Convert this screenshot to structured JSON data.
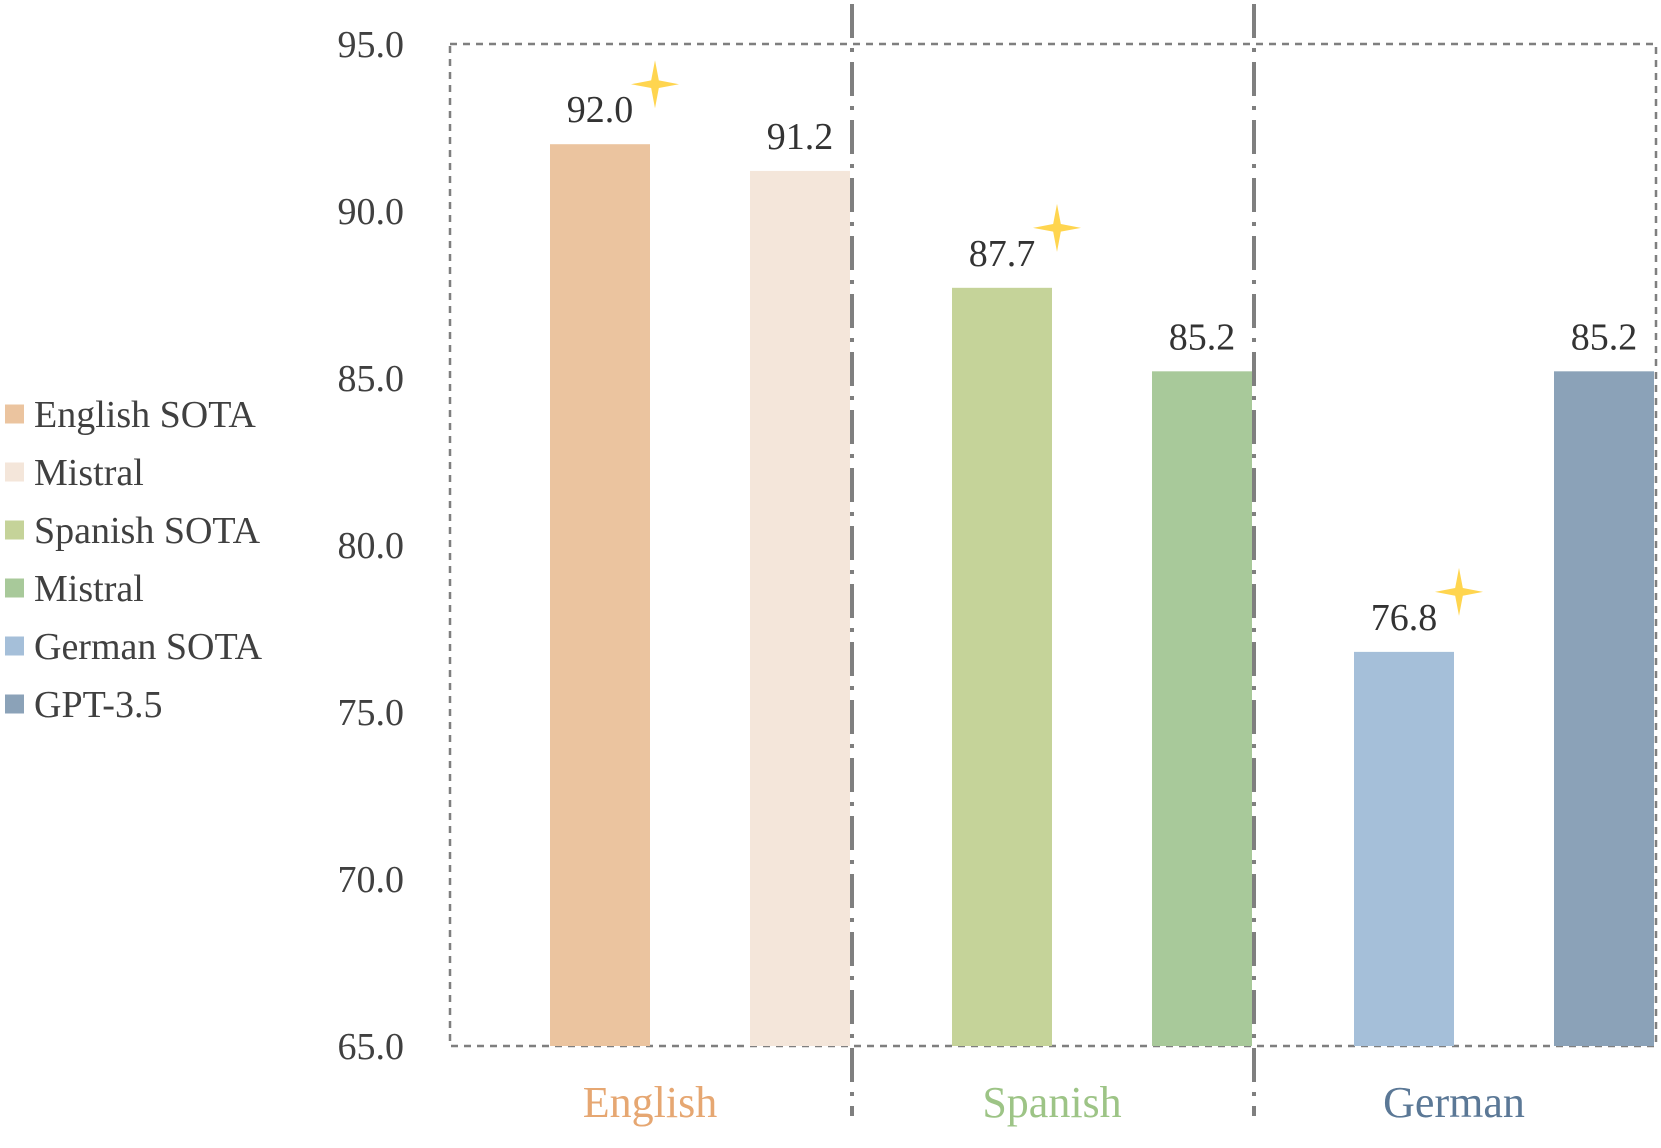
{
  "chart_data": {
    "type": "bar",
    "title": "",
    "xlabel": "",
    "ylabel": "",
    "ylim": [
      65.0,
      95.0
    ],
    "yticks": [
      "65.0",
      "70.0",
      "75.0",
      "80.0",
      "85.0",
      "90.0",
      "95.0"
    ],
    "grid": false,
    "legend_position": "left",
    "groups": [
      {
        "label": "English",
        "label_color": "#E6A772",
        "bars": [
          {
            "name": "English SOTA",
            "value": 92.0,
            "label": "92.0",
            "color": "#EBC49F",
            "star": true
          },
          {
            "name": "Mistral",
            "value": 91.2,
            "label": "91.2",
            "color": "#F4E6DA",
            "star": false
          }
        ]
      },
      {
        "label": "Spanish",
        "label_color": "#9DC486",
        "bars": [
          {
            "name": "Spanish SOTA",
            "value": 87.7,
            "label": "87.7",
            "color": "#C5D399",
            "star": true
          },
          {
            "name": "Mistral",
            "value": 85.2,
            "label": "85.2",
            "color": "#A8C99A",
            "star": false
          }
        ]
      },
      {
        "label": "German",
        "label_color": "#5B7896",
        "bars": [
          {
            "name": "German SOTA",
            "value": 76.8,
            "label": "76.8",
            "color": "#A5BFD9",
            "star": true
          },
          {
            "name": "GPT-3.5",
            "value": 85.2,
            "label": "85.2",
            "color": "#8BA2B8",
            "star": false
          }
        ]
      }
    ],
    "legend": [
      {
        "label": "English SOTA",
        "color": "#EBC49F"
      },
      {
        "label": "Mistral",
        "color": "#F4E6DA"
      },
      {
        "label": "Spanish SOTA",
        "color": "#C5D399"
      },
      {
        "label": "Mistral",
        "color": "#A8C99A"
      },
      {
        "label": "German SOTA",
        "color": "#A5BFD9"
      },
      {
        "label": "GPT-3.5",
        "color": "#8BA2B8"
      }
    ],
    "star_color": "#FFD54F",
    "frame_color": "#7F7F7F"
  }
}
